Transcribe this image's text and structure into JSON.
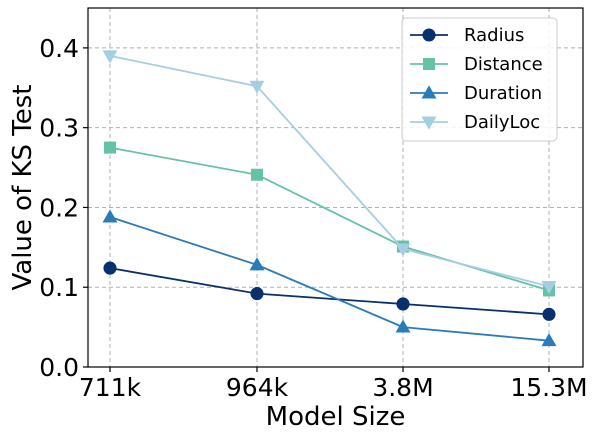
{
  "chart_data": {
    "type": "line",
    "categories": [
      "711k",
      "964k",
      "3.8M",
      "15.3M"
    ],
    "xlabel": "Model Size",
    "ylabel": "Value of KS Test",
    "ylim": [
      0.0,
      0.45
    ],
    "yticks": [
      "0.0",
      "0.1",
      "0.2",
      "0.3",
      "0.4"
    ],
    "ytick_values": [
      0.0,
      0.1,
      0.2,
      0.3,
      0.4
    ],
    "grid": true,
    "legend_position": "top-right",
    "series": [
      {
        "name": "Radius",
        "values": [
          0.124,
          0.092,
          0.079,
          0.066
        ],
        "color": "#08306b",
        "marker": "circle"
      },
      {
        "name": "Distance",
        "values": [
          0.275,
          0.241,
          0.151,
          0.096
        ],
        "color": "#66c2a4",
        "marker": "square"
      },
      {
        "name": "Duration",
        "values": [
          0.188,
          0.128,
          0.05,
          0.033
        ],
        "color": "#2b7bba",
        "marker": "triangle-up"
      },
      {
        "name": "DailyLoc",
        "values": [
          0.39,
          0.352,
          0.148,
          0.101
        ],
        "color": "#a6cee3",
        "marker": "triangle-down"
      }
    ]
  }
}
